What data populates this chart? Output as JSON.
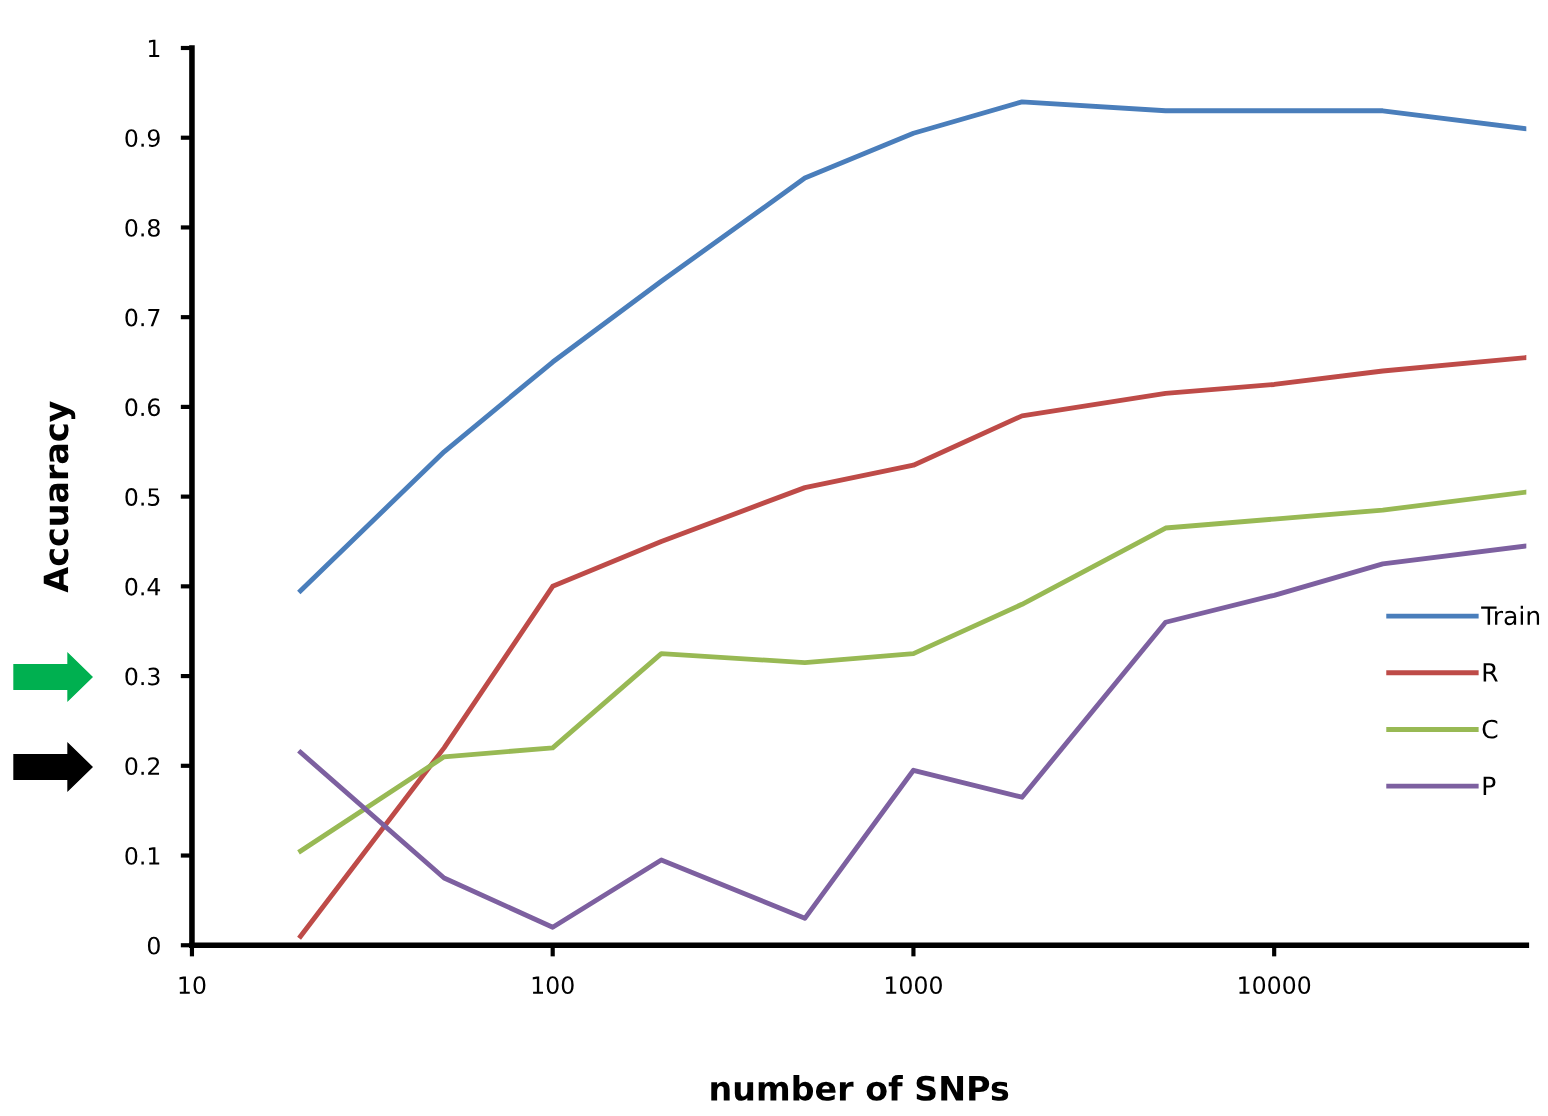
{
  "chart_data": {
    "type": "line",
    "xlabel": "number of SNPs",
    "ylabel": "Accuaracy",
    "x": [
      20,
      50,
      100,
      200,
      500,
      1000,
      2000,
      5000,
      10000,
      20000,
      50000
    ],
    "series": [
      {
        "name": "Train",
        "color": "#4a7ebb",
        "values": [
          0.395,
          0.55,
          0.65,
          0.74,
          0.855,
          0.905,
          0.94,
          0.93,
          0.93,
          0.93,
          0.91
        ]
      },
      {
        "name": "R",
        "color": "#be4b48",
        "values": [
          0.01,
          0.22,
          0.4,
          0.45,
          0.51,
          0.535,
          0.59,
          0.615,
          0.625,
          0.64,
          0.655
        ]
      },
      {
        "name": "C",
        "color": "#98b954",
        "values": [
          0.105,
          0.21,
          0.22,
          0.325,
          0.315,
          0.325,
          0.38,
          0.465,
          0.475,
          0.485,
          0.505
        ]
      },
      {
        "name": "P",
        "color": "#7d60a0",
        "values": [
          0.215,
          0.075,
          0.02,
          0.095,
          0.03,
          0.195,
          0.165,
          0.36,
          0.39,
          0.425,
          0.445
        ]
      }
    ],
    "log": "x",
    "xlim": [
      10,
      50000
    ],
    "xticks": [
      10,
      100,
      1000,
      10000
    ],
    "ylim": [
      0,
      1
    ],
    "yticks": [
      0,
      0.1,
      0.2,
      0.3,
      0.4,
      0.5,
      0.6,
      0.7,
      0.8,
      0.9,
      1
    ],
    "grid": false,
    "legend": "right",
    "marker": "none",
    "line_style": "solid"
  }
}
